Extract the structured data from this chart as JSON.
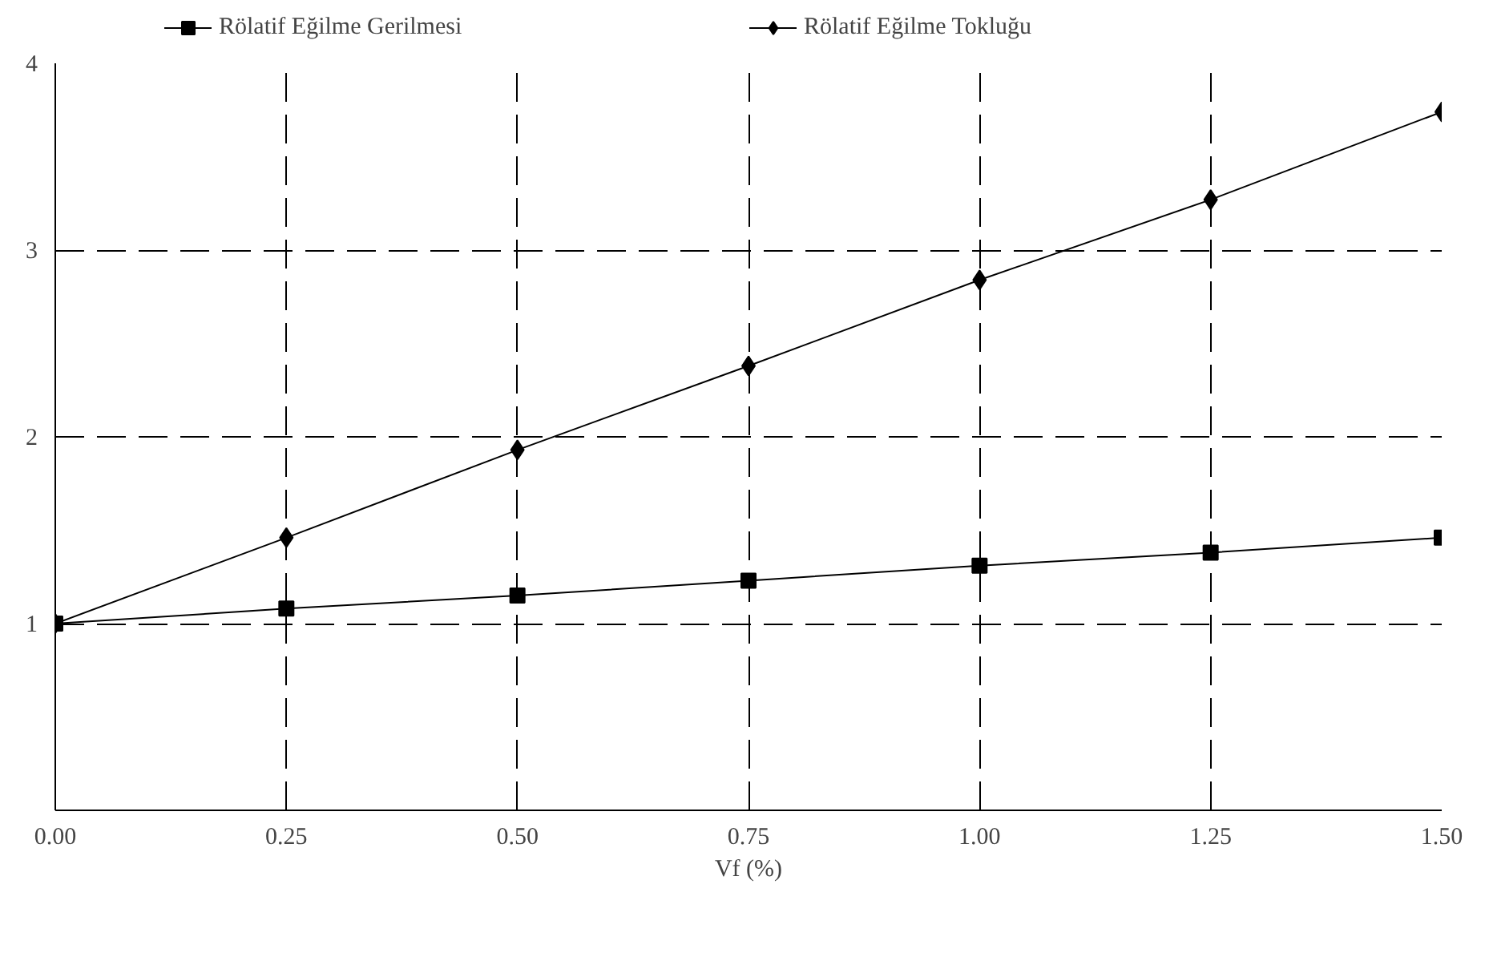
{
  "chart_data": {
    "type": "line",
    "xlabel": "Vf (%)",
    "x": [
      0,
      0.25,
      0.5,
      0.75,
      1.0,
      1.25,
      1.5
    ],
    "series": [
      {
        "name": "Rölatif Eğilme Gerilmesi",
        "color": "#000000",
        "marker": "square",
        "values": [
          1.0,
          1.08,
          1.15,
          1.23,
          1.31,
          1.38,
          1.46
        ]
      },
      {
        "name": "Rölatif Eğilme Tokluğu",
        "color": "#000000",
        "marker": "diamond",
        "values": [
          1.0,
          1.46,
          1.93,
          2.38,
          2.84,
          3.27,
          3.74
        ]
      }
    ],
    "xlim": [
      0,
      1.5
    ],
    "xticks": [
      {
        "value": 0,
        "label": "0.00"
      },
      {
        "value": 0.25,
        "label": "0.25"
      },
      {
        "value": 0.5,
        "label": "0.50"
      },
      {
        "value": 0.75,
        "label": "0.75"
      },
      {
        "value": 1.0,
        "label": "1.00"
      },
      {
        "value": 1.25,
        "label": "1.25"
      },
      {
        "value": 1.5,
        "label": "1.50"
      }
    ],
    "ylim": [
      0,
      4
    ],
    "yticks": [
      1,
      2,
      3,
      4
    ],
    "grid": true,
    "legend": "top",
    "line_style": "solid"
  }
}
